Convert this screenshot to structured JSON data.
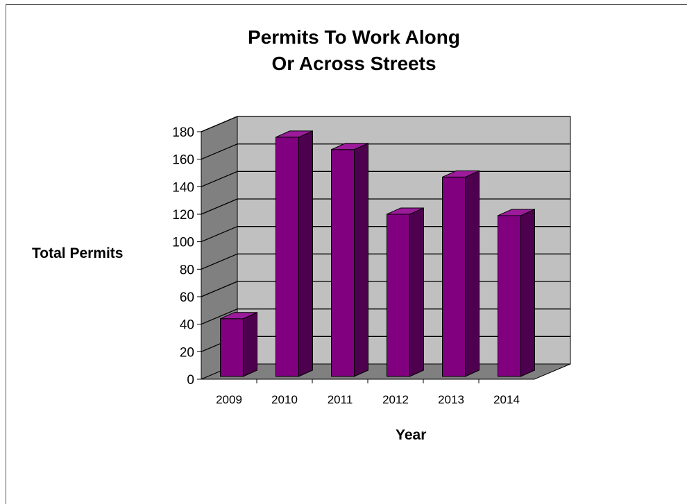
{
  "chart_data": {
    "type": "bar",
    "title": [
      "Permits To Work Along",
      "Or Across Streets"
    ],
    "xlabel": "Year",
    "ylabel": "Total Permits",
    "categories": [
      "2009",
      "2010",
      "2011",
      "2012",
      "2013",
      "2014"
    ],
    "values": [
      42,
      174,
      165,
      118,
      145,
      117
    ],
    "ylim": [
      0,
      180
    ],
    "yticks": [
      0,
      20,
      40,
      60,
      80,
      100,
      120,
      140,
      160,
      180
    ],
    "grid": true,
    "style": "3d",
    "colors": {
      "bar_front": "#800080",
      "bar_side": "#4d004d",
      "bar_top": "#9b1b9b",
      "wall": "#c0c0c0",
      "side_wall": "#808080",
      "floor": "#808080"
    }
  }
}
